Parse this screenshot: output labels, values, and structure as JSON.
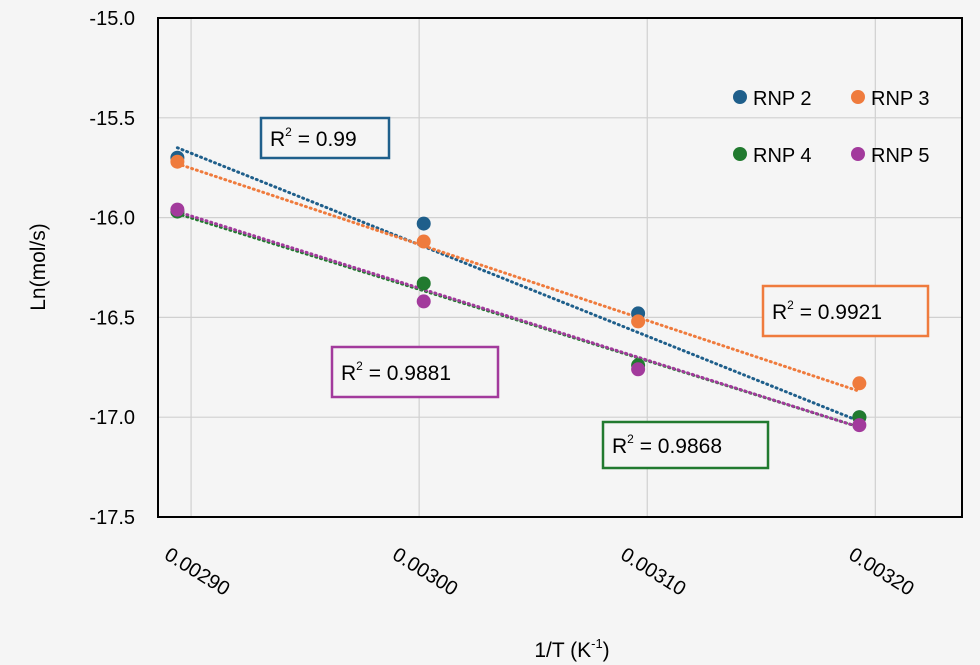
{
  "chart_data": {
    "type": "scatter",
    "title": "",
    "xlabel": "1/T (K",
    "xlabel_sup": "-1",
    "xlabel_close": ")",
    "ylabel": "Ln(mol/s)",
    "xlim": [
      0.0028855,
      0.003238
    ],
    "ylim": [
      -17.5,
      -15.0
    ],
    "grid": true,
    "legend_position": "top-right",
    "x_ticks": [
      "0.00290",
      "0.00300",
      "0.00310",
      "0.00320"
    ],
    "x_tick_values": [
      0.0029,
      0.003,
      0.0031,
      0.0032
    ],
    "y_ticks": [
      "-15.0",
      "-15.5",
      "-16.0",
      "-16.5",
      "-17.0",
      "-17.5"
    ],
    "y_tick_values": [
      -15.0,
      -15.5,
      -16.0,
      -16.5,
      -17.0,
      -17.5
    ],
    "x": [
      0.002894,
      0.003002,
      0.003096,
      0.003193
    ],
    "series": [
      {
        "name": "RNP 2",
        "color": "#1f5f8b",
        "values": [
          -15.7,
          -16.03,
          -16.48,
          -17.0
        ],
        "fit": [
          -15.65,
          -17.02
        ],
        "r2_label": "R",
        "r2_text": " = 0.99",
        "r2_box_color": "#1f5f8b"
      },
      {
        "name": "RNP 3",
        "color": "#ef7b3d",
        "values": [
          -15.72,
          -16.12,
          -16.52,
          -16.83
        ],
        "fit": [
          -15.73,
          -16.87
        ],
        "r2_label": "R",
        "r2_text": " = 0.9921",
        "r2_box_color": "#ef7b3d"
      },
      {
        "name": "RNP 4",
        "color": "#217a2f",
        "values": [
          -15.97,
          -16.33,
          -16.74,
          -17.0
        ],
        "fit": [
          -15.98,
          -17.05
        ],
        "r2_label": "R",
        "r2_text": " = 0.9868",
        "r2_box_color": "#217a2f"
      },
      {
        "name": "RNP 5",
        "color": "#a23a9c",
        "values": [
          -15.96,
          -16.42,
          -16.76,
          -17.04
        ],
        "fit": [
          -15.97,
          -17.05
        ],
        "r2_label": "R",
        "r2_text": " = 0.9881",
        "r2_box_color": "#a23a9c"
      }
    ]
  },
  "colors": {
    "background": "#f5f5f5",
    "plot_border": "#000000",
    "grid": "#d0d0d0"
  }
}
